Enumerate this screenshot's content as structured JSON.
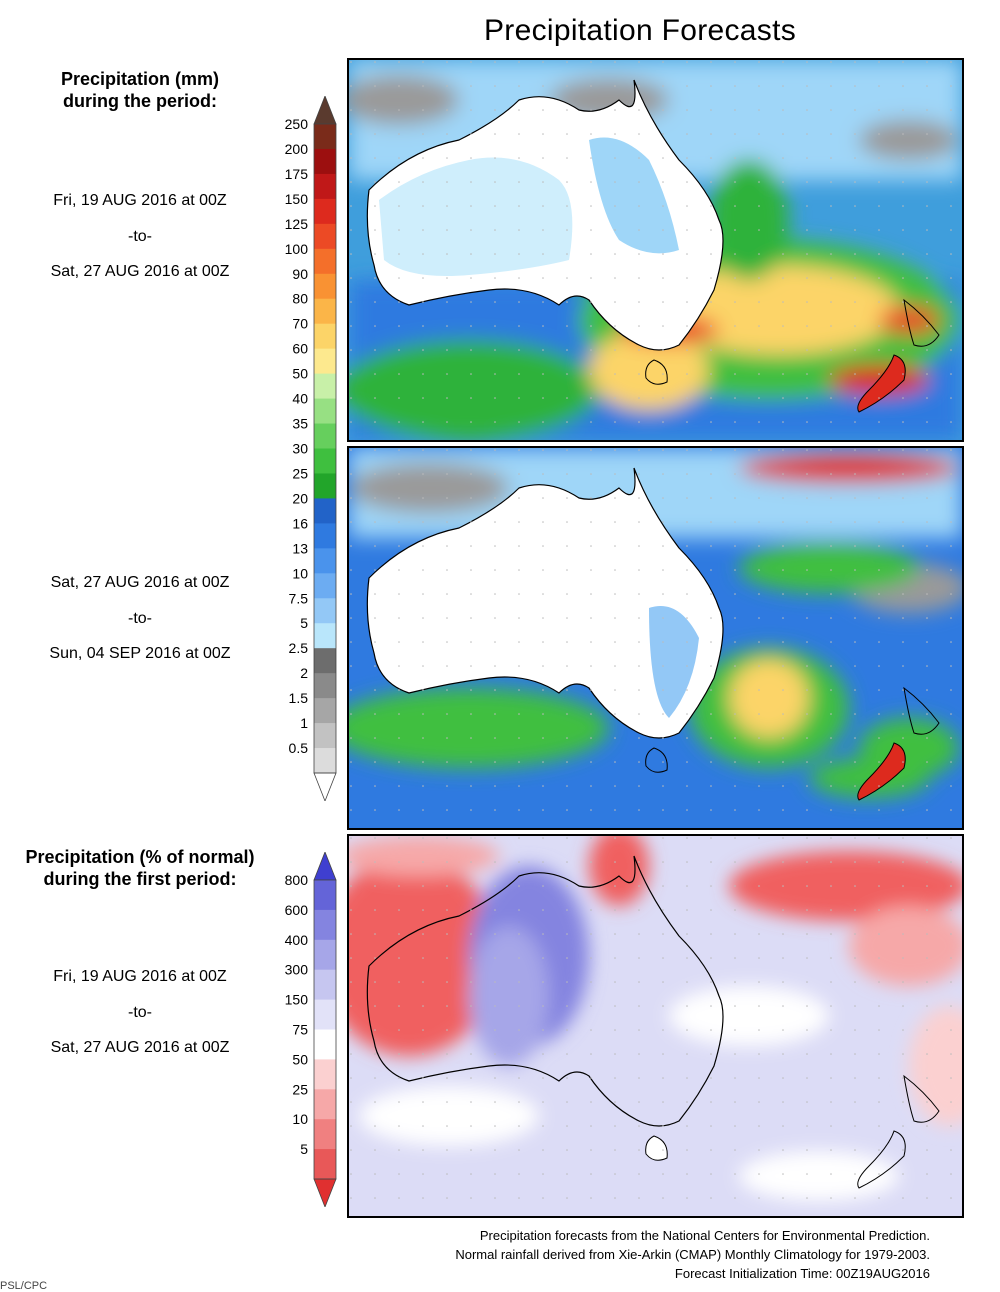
{
  "title": "Precipitation Forecasts",
  "section1": {
    "heading_line1": "Precipitation (mm)",
    "heading_line2": "during the period:"
  },
  "period1": {
    "start": "Fri, 19 AUG 2016 at 00Z",
    "sep": "-to-",
    "end": "Sat, 27 AUG 2016 at 00Z"
  },
  "period2": {
    "start": "Sat, 27 AUG 2016 at 00Z",
    "sep": "-to-",
    "end": "Sun, 04 SEP 2016 at 00Z"
  },
  "section2": {
    "heading_line1": "Precipitation (% of normal)",
    "heading_line2": "during the first period:"
  },
  "period3": {
    "start": "Fri, 19 AUG 2016 at 00Z",
    "sep": "-to-",
    "end": "Sat, 27 AUG 2016 at 00Z"
  },
  "mm_scale": {
    "labels": [
      "250",
      "200",
      "175",
      "150",
      "125",
      "100",
      "90",
      "80",
      "70",
      "60",
      "50",
      "40",
      "35",
      "30",
      "25",
      "20",
      "16",
      "13",
      "10",
      "7.5",
      "5",
      "2.5",
      "2",
      "1.5",
      "1",
      "0.5"
    ],
    "colors": [
      "#7a2b1a",
      "#9c0f0f",
      "#c01818",
      "#dd2a1e",
      "#ec4a25",
      "#f46f2a",
      "#f99233",
      "#fbb548",
      "#fcd468",
      "#fde98e",
      "#c8f0a8",
      "#97e083",
      "#66cf5d",
      "#3fbf3f",
      "#22a52a",
      "#2263c8",
      "#2f7ae0",
      "#4a93ec",
      "#6cacf2",
      "#93c8f6",
      "#b9e6fb",
      "#6d6d6d",
      "#8a8a8a",
      "#a6a6a6",
      "#c2c2c2",
      "#dcdcdc"
    ],
    "top_color": "#5a3a2e",
    "bottom_color": "#ffffff"
  },
  "pct_scale": {
    "labels": [
      "800",
      "600",
      "400",
      "300",
      "150",
      "75",
      "50",
      "25",
      "10",
      "5"
    ],
    "colors": [
      "#6464d8",
      "#8484e0",
      "#a6a6e8",
      "#c6c6f0",
      "#e2e2f8",
      "#ffffff",
      "#fbd0d0",
      "#f6a8a8",
      "#f08080",
      "#e85858"
    ],
    "top_color": "#3f3fd0",
    "bottom_color": "#e03030"
  },
  "footer": {
    "line1": "Precipitation forecasts from the National Centers for Environmental Prediction.",
    "line2": "Normal rainfall derived from Xie-Arkin (CMAP) Monthly Climatology for 1979-2003.",
    "line3": "Forecast Initialization Time: 00Z19AUG2016"
  },
  "credit": "PSL/CPC"
}
